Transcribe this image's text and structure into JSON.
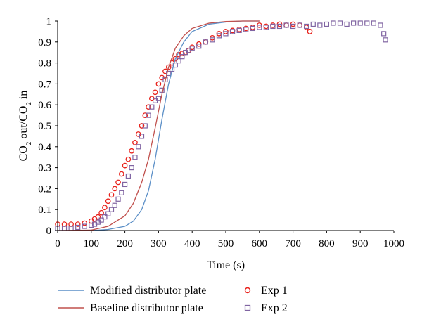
{
  "chart_data": {
    "type": "scatter",
    "xlabel": "Time (s)",
    "ylabel": {
      "parts": [
        {
          "text": "CO",
          "sub": false
        },
        {
          "text": "2",
          "sub": true
        },
        {
          "text": " out/CO",
          "sub": false
        },
        {
          "text": "2",
          "sub": true
        },
        {
          "text": " in",
          "sub": false
        }
      ]
    },
    "xlim": [
      0,
      1000
    ],
    "ylim": [
      0,
      1
    ],
    "xticks": [
      "0",
      "100",
      "200",
      "300",
      "400",
      "500",
      "600",
      "700",
      "800",
      "900",
      "1000"
    ],
    "yticks": [
      "0",
      "0.1",
      "0.2",
      "0.3",
      "0.4",
      "0.5",
      "0.6",
      "0.7",
      "0.8",
      "0.9",
      "1"
    ],
    "grid": false,
    "legend_position": "bottom",
    "series": [
      {
        "name": "Modified distributor plate",
        "kind": "line",
        "color": "#5b8fc7",
        "x": [
          0,
          100,
          150,
          200,
          225,
          250,
          270,
          290,
          310,
          330,
          350,
          375,
          400,
          450,
          500,
          550,
          600
        ],
        "y": [
          0,
          0,
          0.005,
          0.02,
          0.045,
          0.1,
          0.19,
          0.34,
          0.53,
          0.7,
          0.82,
          0.9,
          0.95,
          0.985,
          0.995,
          1.0,
          1.0
        ]
      },
      {
        "name": "Baseline distributor plate",
        "kind": "line",
        "color": "#c0504d",
        "x": [
          0,
          100,
          150,
          200,
          225,
          250,
          270,
          290,
          310,
          330,
          350,
          375,
          400,
          450,
          500,
          550,
          600
        ],
        "y": [
          0,
          0.002,
          0.02,
          0.07,
          0.13,
          0.23,
          0.34,
          0.49,
          0.65,
          0.78,
          0.87,
          0.93,
          0.965,
          0.99,
          0.998,
          1.0,
          1.0
        ]
      },
      {
        "name": "Exp 1",
        "kind": "marker",
        "marker": "circle",
        "color": "#e8221c",
        "x": [
          0,
          20,
          40,
          60,
          80,
          100,
          110,
          120,
          130,
          140,
          150,
          160,
          170,
          180,
          190,
          200,
          210,
          220,
          230,
          240,
          250,
          260,
          270,
          280,
          290,
          300,
          310,
          320,
          330,
          340,
          350,
          360,
          370,
          380,
          390,
          400,
          420,
          440,
          460,
          480,
          500,
          520,
          540,
          560,
          580,
          600,
          620,
          640,
          660,
          680,
          700,
          720,
          740,
          750
        ],
        "y": [
          0.03,
          0.03,
          0.03,
          0.03,
          0.035,
          0.045,
          0.055,
          0.065,
          0.085,
          0.11,
          0.14,
          0.17,
          0.2,
          0.23,
          0.27,
          0.31,
          0.34,
          0.38,
          0.42,
          0.46,
          0.5,
          0.55,
          0.59,
          0.63,
          0.66,
          0.7,
          0.73,
          0.76,
          0.78,
          0.8,
          0.82,
          0.84,
          0.845,
          0.85,
          0.86,
          0.875,
          0.89,
          0.9,
          0.92,
          0.94,
          0.95,
          0.955,
          0.96,
          0.965,
          0.97,
          0.98,
          0.975,
          0.98,
          0.985,
          0.98,
          0.985,
          0.98,
          0.97,
          0.95
        ]
      },
      {
        "name": "Exp 2",
        "kind": "marker",
        "marker": "square",
        "color": "#8064a2",
        "x": [
          0,
          20,
          40,
          60,
          80,
          100,
          110,
          120,
          130,
          140,
          150,
          160,
          170,
          180,
          190,
          200,
          210,
          220,
          230,
          240,
          250,
          260,
          270,
          280,
          290,
          300,
          310,
          320,
          330,
          340,
          350,
          360,
          370,
          380,
          390,
          400,
          420,
          440,
          460,
          480,
          500,
          520,
          540,
          560,
          580,
          600,
          620,
          640,
          660,
          680,
          700,
          720,
          740,
          760,
          780,
          800,
          820,
          840,
          860,
          880,
          900,
          920,
          940,
          960,
          970,
          975
        ],
        "y": [
          0.01,
          0.01,
          0.01,
          0.015,
          0.02,
          0.025,
          0.03,
          0.04,
          0.05,
          0.065,
          0.08,
          0.1,
          0.12,
          0.15,
          0.18,
          0.22,
          0.26,
          0.3,
          0.35,
          0.4,
          0.45,
          0.5,
          0.55,
          0.59,
          0.62,
          0.63,
          0.67,
          0.72,
          0.75,
          0.77,
          0.79,
          0.81,
          0.83,
          0.85,
          0.86,
          0.87,
          0.88,
          0.9,
          0.91,
          0.93,
          0.94,
          0.95,
          0.955,
          0.96,
          0.965,
          0.97,
          0.97,
          0.975,
          0.975,
          0.98,
          0.975,
          0.98,
          0.975,
          0.985,
          0.98,
          0.985,
          0.99,
          0.99,
          0.985,
          0.99,
          0.99,
          0.99,
          0.99,
          0.98,
          0.94,
          0.91
        ]
      }
    ]
  }
}
